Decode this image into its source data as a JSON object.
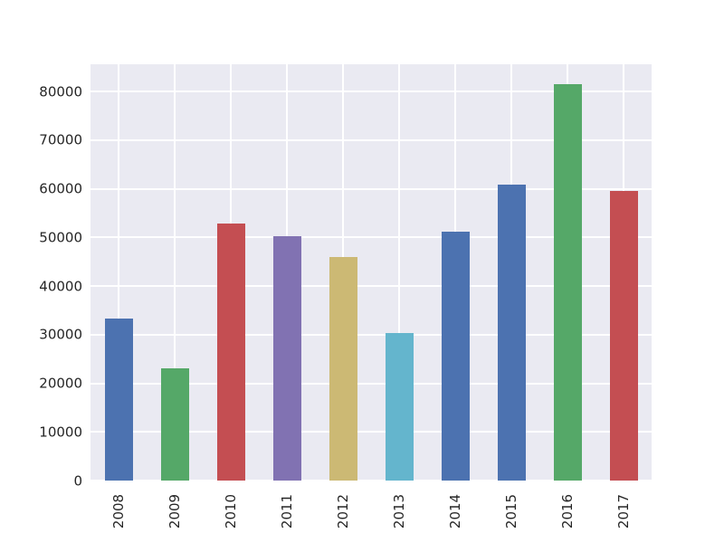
{
  "chart_data": {
    "type": "bar",
    "title": "",
    "xlabel": "",
    "ylabel": "",
    "categories": [
      "2008",
      "2009",
      "2010",
      "2011",
      "2012",
      "2013",
      "2014",
      "2015",
      "2016",
      "2017"
    ],
    "values": [
      33300,
      23100,
      52800,
      50200,
      46000,
      30400,
      51100,
      60800,
      81500,
      59500
    ],
    "bar_colors": [
      "#4C72B0",
      "#55A868",
      "#C44E52",
      "#8172B2",
      "#CCB974",
      "#64B5CD",
      "#4C72B0",
      "#4C72B0",
      "#55A868",
      "#C44E52"
    ],
    "y_ticks": [
      0,
      10000,
      20000,
      30000,
      40000,
      50000,
      60000,
      70000,
      80000
    ],
    "y_tick_labels": [
      "0",
      "10000",
      "20000",
      "30000",
      "40000",
      "50000",
      "60000",
      "70000",
      "80000"
    ],
    "x_tick_rotation_deg": 90,
    "ylim": [
      0,
      85600
    ],
    "grid": true,
    "legend": false,
    "style": {
      "plot_background": "#EAEAF2",
      "grid_color": "#FFFFFF",
      "figure_background": "#FFFFFF",
      "tick_label_color": "#262626",
      "bar_fraction_of_slot": 0.5
    }
  }
}
